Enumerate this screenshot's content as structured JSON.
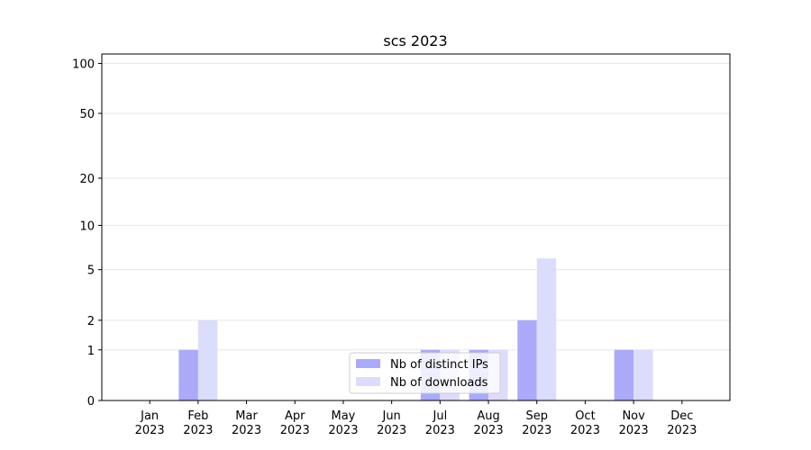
{
  "chart_data": {
    "type": "bar",
    "title": "scs 2023",
    "categories": [
      "Jan\n2023",
      "Feb\n2023",
      "Mar\n2023",
      "Apr\n2023",
      "May\n2023",
      "Jun\n2023",
      "Jul\n2023",
      "Aug\n2023",
      "Sep\n2023",
      "Oct\n2023",
      "Nov\n2023",
      "Dec\n2023"
    ],
    "series": [
      {
        "name": "Nb of distinct IPs",
        "color": "#aaaaf8",
        "values": [
          0,
          1,
          0,
          0,
          0,
          0,
          1,
          1,
          2,
          0,
          1,
          0
        ]
      },
      {
        "name": "Nb of downloads",
        "color": "#dcdcfc",
        "values": [
          0,
          2,
          0,
          0,
          0,
          0,
          1,
          1,
          6,
          0,
          1,
          0
        ]
      }
    ],
    "yscale": "log1p",
    "ylim": [
      0,
      114
    ],
    "yticks": [
      0,
      1,
      2,
      5,
      10,
      20,
      50,
      100
    ],
    "grid": true,
    "legend": "lower center"
  }
}
